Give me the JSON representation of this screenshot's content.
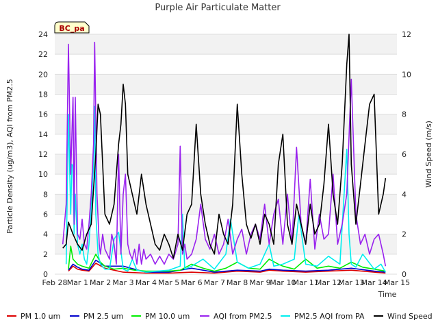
{
  "chart_data": {
    "type": "line",
    "title": "Purple Air Particulate Matter",
    "xlabel": "Time",
    "ylabel": "Particle Density (ug/m3), AQI from PM2.5",
    "y2label": "Wind Speed (m/s)",
    "badge": "BC_pa",
    "x_ticks": [
      "Feb 28",
      "Mar 1",
      "Mar 2",
      "Mar 3",
      "Mar 4",
      "Mar 5",
      "Mar 6",
      "Mar 7",
      "Mar 8",
      "Mar 9",
      "Mar 10",
      "Mar 11",
      "Mar 12",
      "Mar 13",
      "Mar 14",
      "Mar 15"
    ],
    "xlim": [
      0,
      15
    ],
    "ylim": [
      0,
      24
    ],
    "y_ticks": [
      0,
      2,
      4,
      6,
      8,
      10,
      12,
      14,
      16,
      18,
      20,
      22,
      24
    ],
    "y2lim": [
      0,
      12
    ],
    "y2_ticks": [
      0,
      2,
      4,
      6,
      8,
      10,
      12
    ],
    "grid": "horizontal bands",
    "legend_position": "bottom",
    "series": [
      {
        "name": "PM 1.0 um",
        "color": "#dd0000",
        "axis": "left",
        "x": [
          0.6,
          0.8,
          1.0,
          1.2,
          1.5,
          1.8,
          2.2,
          3.0,
          4.0,
          5.0,
          6.0,
          7.0,
          8.0,
          9.0,
          9.4,
          10.0,
          11.0,
          12.0,
          13.0,
          14.0,
          14.5
        ],
        "y": [
          0.3,
          0.8,
          0.5,
          0.4,
          0.3,
          1.1,
          0.6,
          0.2,
          0.1,
          0.1,
          0.2,
          0.1,
          0.3,
          0.2,
          0.4,
          0.3,
          0.2,
          0.3,
          0.4,
          0.2,
          0.1
        ]
      },
      {
        "name": "PM 2.5 um",
        "color": "#0000cc",
        "axis": "left",
        "x": [
          0.6,
          0.8,
          1.0,
          1.2,
          1.5,
          1.8,
          2.2,
          3.0,
          4.0,
          5.0,
          6.0,
          7.0,
          8.0,
          9.0,
          9.4,
          10.0,
          11.0,
          12.0,
          13.0,
          14.0,
          14.5
        ],
        "y": [
          0.4,
          1.0,
          0.7,
          0.5,
          0.4,
          1.4,
          0.8,
          0.8,
          0.2,
          0.2,
          0.6,
          0.2,
          0.4,
          0.3,
          0.5,
          0.4,
          0.3,
          0.4,
          0.6,
          0.3,
          0.2
        ]
      },
      {
        "name": "PM 10.0 um",
        "color": "#00ee00",
        "axis": "left",
        "x": [
          0.6,
          0.7,
          0.8,
          1.0,
          1.2,
          1.5,
          1.8,
          2.0,
          2.2,
          2.6,
          3.0,
          3.5,
          4.0,
          4.5,
          5.0,
          5.5,
          6.0,
          6.5,
          7.0,
          7.5,
          8.0,
          8.5,
          9.0,
          9.4,
          9.8,
          10.0,
          10.5,
          11.0,
          11.5,
          12.0,
          12.5,
          13.0,
          13.5,
          14.0,
          14.5
        ],
        "y": [
          0.5,
          2.8,
          1.5,
          1.0,
          0.8,
          0.6,
          2.0,
          1.2,
          0.8,
          0.5,
          0.6,
          0.4,
          0.3,
          0.3,
          0.3,
          0.4,
          1.0,
          0.6,
          0.3,
          0.6,
          1.2,
          0.6,
          0.5,
          1.5,
          1.0,
          0.8,
          0.5,
          1.5,
          0.6,
          0.8,
          0.6,
          1.2,
          0.7,
          0.5,
          0.3
        ]
      },
      {
        "name": "AQI from PM2.5",
        "color": "#9922ee",
        "axis": "left",
        "x": [
          0.35,
          0.5,
          0.6,
          0.7,
          0.8,
          0.85,
          0.9,
          1.0,
          1.1,
          1.2,
          1.3,
          1.4,
          1.5,
          1.6,
          1.7,
          1.75,
          1.85,
          1.95,
          2.0,
          2.1,
          2.2,
          2.3,
          2.4,
          2.5,
          2.6,
          2.7,
          2.8,
          2.9,
          3.0,
          3.1,
          3.2,
          3.3,
          3.4,
          3.5,
          3.6,
          3.7,
          3.8,
          3.9,
          4.0,
          4.2,
          4.4,
          4.6,
          4.8,
          5.0,
          5.2,
          5.4,
          5.5,
          5.6,
          5.7,
          5.8,
          6.0,
          6.2,
          6.4,
          6.6,
          6.8,
          7.0,
          7.2,
          7.4,
          7.6,
          7.8,
          8.0,
          8.2,
          8.4,
          8.6,
          8.8,
          9.0,
          9.2,
          9.4,
          9.6,
          9.8,
          10.0,
          10.2,
          10.4,
          10.6,
          10.8,
          11.0,
          11.2,
          11.4,
          11.6,
          11.8,
          12.0,
          12.2,
          12.4,
          12.6,
          12.8,
          13.0,
          13.2,
          13.4,
          13.6,
          13.8,
          14.0,
          14.2,
          14.4,
          14.5
        ],
        "y": [
          3.0,
          7.0,
          23.0,
          10.0,
          17.7,
          5.0,
          17.7,
          4.0,
          3.5,
          5.5,
          3.0,
          2.5,
          5.0,
          8.0,
          13.0,
          23.2,
          8.0,
          3.0,
          2.0,
          4.0,
          2.5,
          2.0,
          1.5,
          4.0,
          3.0,
          1.0,
          12.0,
          2.0,
          8.0,
          10.0,
          3.0,
          2.0,
          1.5,
          2.5,
          1.0,
          3.0,
          1.0,
          2.5,
          1.5,
          2.0,
          1.0,
          1.8,
          1.0,
          2.0,
          1.5,
          3.0,
          12.8,
          2.0,
          3.0,
          1.5,
          2.0,
          3.5,
          7.0,
          3.5,
          2.5,
          4.0,
          2.0,
          3.0,
          5.5,
          2.0,
          3.5,
          4.5,
          2.0,
          4.0,
          5.0,
          3.5,
          7.0,
          3.0,
          6.0,
          7.5,
          3.0,
          8.0,
          3.0,
          12.7,
          5.0,
          3.0,
          9.5,
          2.5,
          6.0,
          3.5,
          4.0,
          10.0,
          3.0,
          5.0,
          8.0,
          19.5,
          6.0,
          3.0,
          4.0,
          2.0,
          3.5,
          4.0,
          2.0,
          0.8
        ]
      },
      {
        "name": "PM2.5 AQI from PA",
        "color": "#00eeee",
        "axis": "left",
        "x": [
          0.5,
          0.6,
          0.7,
          0.75,
          0.8,
          0.85,
          0.9,
          1.0,
          1.1,
          1.2,
          1.3,
          1.4,
          1.5,
          1.6,
          1.7,
          1.75,
          1.8,
          1.9,
          2.0,
          2.2,
          2.4,
          2.6,
          2.8,
          3.0,
          3.2,
          3.4,
          3.6,
          3.8,
          4.0,
          4.5,
          5.0,
          5.5,
          5.6,
          5.7,
          6.0,
          6.5,
          7.0,
          7.5,
          7.7,
          8.0,
          8.5,
          9.0,
          9.4,
          9.6,
          10.0,
          10.5,
          10.7,
          11.0,
          11.5,
          12.0,
          12.5,
          12.8,
          12.9,
          13.0,
          13.2,
          13.5,
          14.0,
          14.3,
          14.5
        ],
        "y": [
          1.0,
          16.0,
          6.0,
          11.0,
          10.8,
          4.0,
          8.0,
          3.0,
          2.0,
          3.0,
          1.5,
          1.0,
          3.0,
          6.5,
          11.0,
          16.8,
          6.0,
          2.0,
          1.0,
          0.5,
          0.5,
          3.5,
          4.2,
          0.5,
          0.3,
          1.5,
          0.4,
          0.3,
          0.2,
          0.3,
          0.4,
          0.8,
          6.0,
          0.5,
          0.8,
          1.5,
          0.5,
          2.0,
          5.5,
          1.2,
          0.6,
          1.0,
          3.0,
          0.8,
          1.0,
          1.5,
          6.0,
          1.0,
          0.8,
          1.8,
          1.0,
          12.5,
          4.0,
          1.0,
          0.7,
          2.0,
          0.5,
          1.0,
          0.2
        ]
      },
      {
        "name": "Wind Speed",
        "color": "#000000",
        "axis": "right",
        "x": [
          0.35,
          0.5,
          0.6,
          0.8,
          1.0,
          1.2,
          1.4,
          1.6,
          1.8,
          1.9,
          2.0,
          2.2,
          2.4,
          2.6,
          2.8,
          2.9,
          3.0,
          3.1,
          3.2,
          3.4,
          3.6,
          3.8,
          4.0,
          4.2,
          4.4,
          4.6,
          4.8,
          5.0,
          5.2,
          5.4,
          5.6,
          5.8,
          6.0,
          6.2,
          6.4,
          6.6,
          6.8,
          7.0,
          7.2,
          7.4,
          7.6,
          7.8,
          8.0,
          8.2,
          8.4,
          8.6,
          8.8,
          9.0,
          9.2,
          9.4,
          9.6,
          9.8,
          10.0,
          10.2,
          10.4,
          10.6,
          10.8,
          11.0,
          11.2,
          11.4,
          11.6,
          11.8,
          12.0,
          12.2,
          12.4,
          12.6,
          12.8,
          12.9,
          13.0,
          13.2,
          13.4,
          13.6,
          13.8,
          14.0,
          14.2,
          14.4,
          14.5
        ],
        "y": [
          1.3,
          1.5,
          2.6,
          2.0,
          1.5,
          1.2,
          2.0,
          2.5,
          6.0,
          8.5,
          8.0,
          3.0,
          2.5,
          3.5,
          6.5,
          7.5,
          9.5,
          8.5,
          5.0,
          4.0,
          3.0,
          5.0,
          3.5,
          2.5,
          1.5,
          1.2,
          2.0,
          1.5,
          0.8,
          2.0,
          1.2,
          3.0,
          3.5,
          7.5,
          4.0,
          2.5,
          1.5,
          1.0,
          3.0,
          2.0,
          1.5,
          3.5,
          8.5,
          5.0,
          2.5,
          1.8,
          2.5,
          1.5,
          3.0,
          2.5,
          1.5,
          5.5,
          7.0,
          2.5,
          1.5,
          3.5,
          2.5,
          1.5,
          3.5,
          2.0,
          2.5,
          4.5,
          7.5,
          4.0,
          2.5,
          5.5,
          10.5,
          12.0,
          5.5,
          2.5,
          4.5,
          6.5,
          8.5,
          9.0,
          3.0,
          4.0,
          4.8
        ]
      }
    ]
  }
}
